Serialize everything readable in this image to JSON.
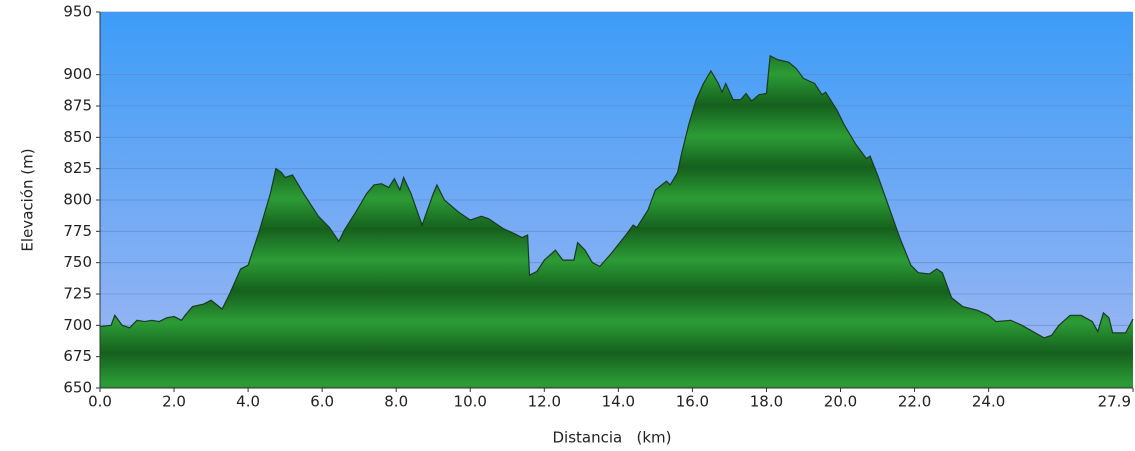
{
  "chart_data": {
    "type": "area",
    "x_label": "Distancia   (km)",
    "y_label": "Elevación (m)",
    "x": [
      0,
      0.3,
      0.4,
      0.6,
      0.8,
      1.0,
      1.2,
      1.4,
      1.6,
      1.8,
      2.0,
      2.2,
      2.3,
      2.5,
      2.8,
      3.0,
      3.3,
      3.5,
      3.8,
      4.0,
      4.3,
      4.6,
      4.75,
      4.9,
      5.0,
      5.2,
      5.5,
      5.9,
      6.2,
      6.45,
      6.6,
      6.9,
      7.0,
      7.2,
      7.4,
      7.6,
      7.8,
      7.95,
      8.1,
      8.2,
      8.4,
      8.7,
      9.0,
      9.1,
      9.3,
      9.7,
      10.0,
      10.3,
      10.5,
      10.9,
      11.2,
      11.4,
      11.55,
      11.6,
      11.8,
      12.0,
      12.3,
      12.5,
      12.8,
      12.9,
      13.1,
      13.3,
      13.5,
      13.8,
      14.2,
      14.4,
      14.5,
      14.8,
      15.0,
      15.3,
      15.4,
      15.6,
      15.7,
      15.9,
      16.1,
      16.3,
      16.5,
      16.7,
      16.8,
      16.9,
      17.1,
      17.3,
      17.45,
      17.6,
      17.8,
      18.0,
      18.1,
      18.3,
      18.6,
      18.8,
      19.0,
      19.3,
      19.5,
      19.6,
      19.9,
      20.1,
      20.4,
      20.7,
      20.8,
      21.0,
      21.3,
      21.6,
      21.9,
      22.1,
      22.4,
      22.6,
      22.75,
      23.0,
      23.3,
      23.7,
      24.0,
      24.2,
      24.6,
      24.9,
      25.2,
      25.5,
      25.7,
      25.9,
      26.2,
      26.5,
      26.8,
      26.95,
      27.1,
      27.25,
      27.35,
      27.7,
      27.9
    ],
    "values": [
      699,
      700,
      708,
      700,
      698,
      704,
      703,
      704,
      703,
      706,
      707,
      704,
      708,
      715,
      717,
      720,
      713,
      725,
      745,
      748,
      775,
      805,
      825,
      822,
      818,
      820,
      805,
      787,
      778,
      767,
      776,
      790,
      795,
      805,
      812,
      813,
      810,
      817,
      808,
      818,
      805,
      780,
      805,
      812,
      800,
      790,
      784,
      787,
      785,
      777,
      773,
      770,
      772,
      740,
      743,
      752,
      760,
      752,
      752,
      766,
      760,
      750,
      747,
      757,
      772,
      780,
      778,
      792,
      808,
      815,
      812,
      822,
      836,
      860,
      880,
      893,
      903,
      893,
      886,
      893,
      880,
      880,
      885,
      879,
      884,
      885,
      915,
      912,
      910,
      905,
      897,
      893,
      884,
      886,
      872,
      860,
      845,
      833,
      835,
      820,
      795,
      770,
      748,
      742,
      741,
      745,
      742,
      722,
      715,
      712,
      708,
      703,
      704,
      700,
      695,
      690,
      692,
      700,
      708,
      708,
      703,
      695,
      710,
      706,
      694,
      694,
      705
    ],
    "color": "#2a9a35",
    "xlim": [
      0,
      27.9
    ],
    "ylim": [
      650,
      950
    ],
    "xticks": [
      {
        "value": 0,
        "label": "0.0"
      },
      {
        "value": 2,
        "label": "2.0"
      },
      {
        "value": 4,
        "label": "4.0"
      },
      {
        "value": 6,
        "label": "6.0"
      },
      {
        "value": 8,
        "label": "8.0"
      },
      {
        "value": 10,
        "label": "10.0"
      },
      {
        "value": 12,
        "label": "12.0"
      },
      {
        "value": 14,
        "label": "14.0"
      },
      {
        "value": 16,
        "label": "16.0"
      },
      {
        "value": 18,
        "label": "18.0"
      },
      {
        "value": 20,
        "label": "20.0"
      },
      {
        "value": 22,
        "label": "22.0"
      },
      {
        "value": 24,
        "label": "24.0"
      },
      {
        "value": 27.9,
        "label": "27.9"
      }
    ],
    "yticks": [
      650,
      675,
      700,
      725,
      750,
      775,
      800,
      825,
      850,
      875,
      900,
      950
    ],
    "grid": true
  }
}
